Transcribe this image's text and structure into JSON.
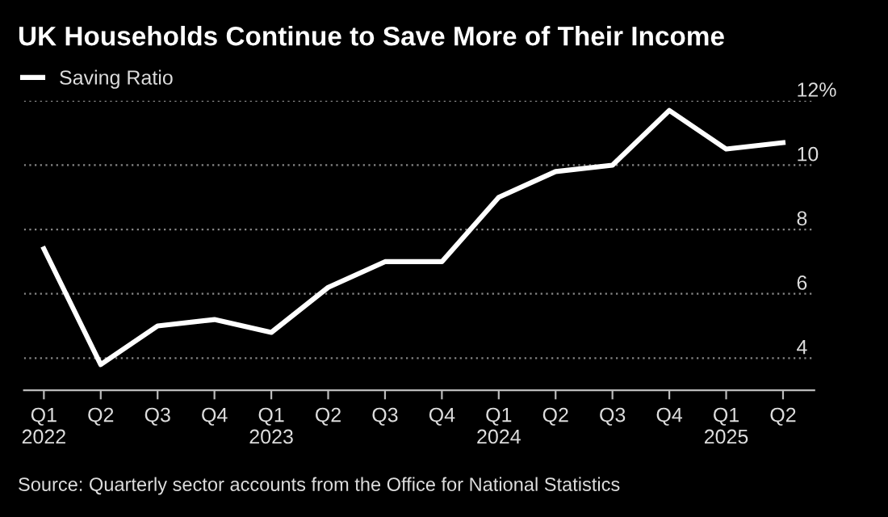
{
  "chart_data": {
    "type": "line",
    "title": "UK Households Continue to Save More of Their Income",
    "categories": [
      "Q1\n2022",
      "Q2",
      "Q3",
      "Q4",
      "Q1\n2023",
      "Q2",
      "Q3",
      "Q4",
      "Q1\n2024",
      "Q2",
      "Q3",
      "Q4",
      "Q1\n2025",
      "Q2"
    ],
    "series": [
      {
        "name": "Saving Ratio",
        "color": "#ffffff",
        "values": [
          7.4,
          3.8,
          5.0,
          5.2,
          4.8,
          6.2,
          7.0,
          7.0,
          9.0,
          9.8,
          10.0,
          11.7,
          10.5,
          10.7
        ]
      }
    ],
    "ylim": [
      3,
      12
    ],
    "yticks": [
      4,
      6,
      8,
      10,
      {
        "value": 12,
        "label": "12%"
      }
    ],
    "grid": "y",
    "legend": "top left",
    "marker": "none",
    "line_style": "solid",
    "annotations": [
      "Source: Quarterly sector accounts from the Office for National Statistics"
    ]
  }
}
